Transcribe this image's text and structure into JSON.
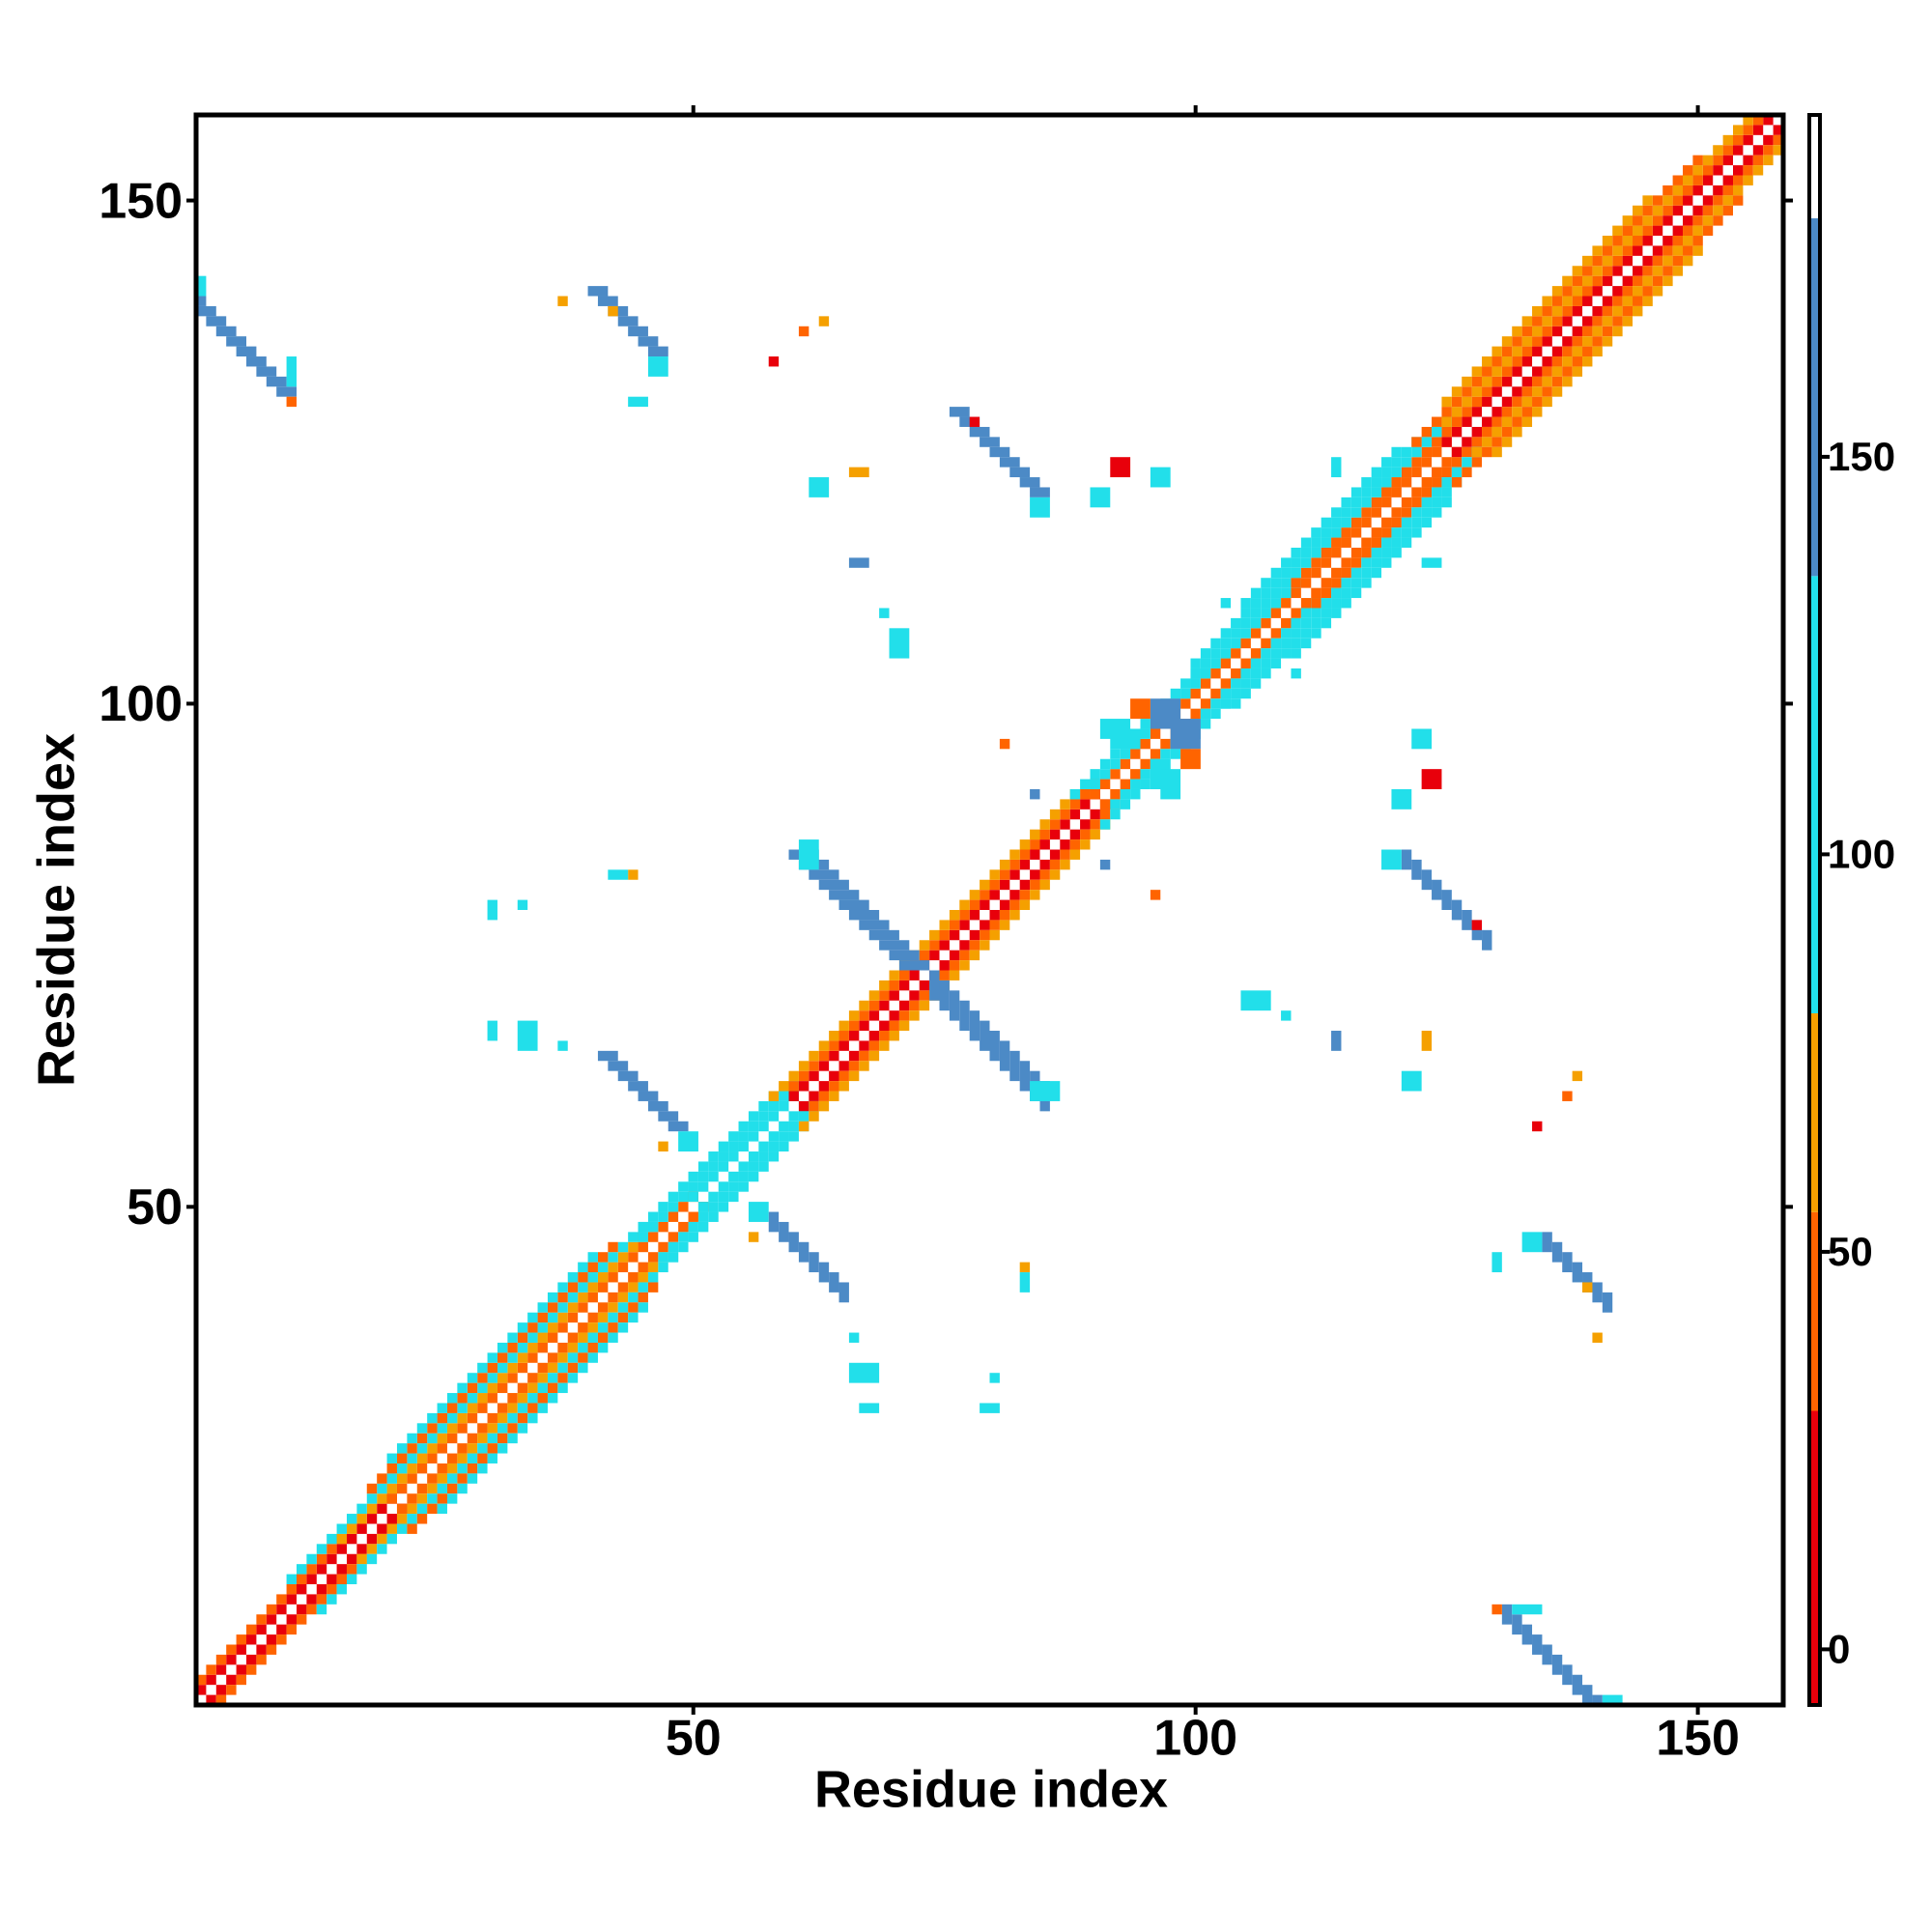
{
  "chart_data": {
    "type": "heatmap",
    "xlabel": "Residue index",
    "ylabel": "Residue index",
    "xlim": [
      0.5,
      158.5
    ],
    "ylim": [
      0.5,
      158.5
    ],
    "xticks": [
      50,
      100,
      150
    ],
    "yticks": [
      50,
      100,
      150
    ],
    "symmetric": true,
    "colorbar": {
      "lim": [
        -7,
        193
      ],
      "ticks": [
        0,
        50,
        100,
        150
      ],
      "bands": [
        [
          -7,
          30,
          "#e8000b"
        ],
        [
          30,
          55,
          "#ff6400"
        ],
        [
          55,
          80,
          "#f5a000"
        ],
        [
          80,
          135,
          "#22dfea"
        ],
        [
          135,
          180,
          "#4c8ac6"
        ],
        [
          180,
          193,
          "#ffffff"
        ]
      ]
    },
    "diagonals": [
      [
        1,
        1,
        20,
        10
      ],
      [
        1,
        20,
        50,
        45
      ],
      [
        1,
        50,
        60,
        110
      ],
      [
        1,
        60,
        90,
        10
      ],
      [
        1,
        90,
        125,
        45
      ],
      [
        1,
        125,
        157,
        10
      ],
      [
        2,
        1,
        15,
        45
      ],
      [
        2,
        15,
        45,
        70
      ],
      [
        2,
        45,
        60,
        110
      ],
      [
        2,
        60,
        90,
        45
      ],
      [
        2,
        90,
        110,
        110
      ],
      [
        2,
        110,
        156,
        45
      ],
      [
        3,
        10,
        45,
        110
      ],
      [
        3,
        45,
        58,
        110
      ],
      [
        3,
        58,
        88,
        70
      ],
      [
        3,
        88,
        100,
        110
      ],
      [
        3,
        100,
        125,
        110
      ],
      [
        3,
        125,
        155,
        70
      ],
      [
        4,
        18,
        42,
        45
      ],
      [
        4,
        100,
        122,
        110
      ],
      [
        4,
        122,
        150,
        45
      ],
      [
        5,
        20,
        40,
        110
      ],
      [
        5,
        105,
        120,
        110
      ],
      [
        5,
        125,
        145,
        70
      ]
    ],
    "strands": [
      [
        131,
        10,
        11,
        2,
        160
      ],
      [
        135,
        47,
        7,
        2,
        160
      ],
      [
        74,
        73,
        12,
        3,
        160
      ],
      [
        121,
        85,
        9,
        2,
        160
      ],
      [
        58,
        49,
        8,
        2,
        160
      ]
    ],
    "blocks": [
      [
        132,
        10,
        3,
        1,
        110
      ],
      [
        141,
        1,
        2,
        1,
        110
      ],
      [
        130,
        10,
        1,
        1,
        45
      ],
      [
        133,
        46,
        2,
        2,
        110
      ],
      [
        139,
        42,
        1,
        1,
        70
      ],
      [
        84,
        61,
        3,
        2,
        110
      ],
      [
        119,
        84,
        2,
        2,
        110
      ],
      [
        128,
        78,
        1,
        1,
        10
      ],
      [
        122,
        96,
        2,
        2,
        110
      ],
      [
        123,
        92,
        2,
        2,
        10
      ],
      [
        120,
        90,
        2,
        2,
        110
      ],
      [
        123,
        66,
        1,
        2,
        70
      ],
      [
        121,
        62,
        2,
        2,
        110
      ],
      [
        105,
        70,
        3,
        2,
        110
      ],
      [
        114,
        66,
        1,
        2,
        160
      ],
      [
        109,
        69,
        1,
        1,
        110
      ],
      [
        134,
        58,
        1,
        1,
        10
      ],
      [
        137,
        61,
        1,
        1,
        45
      ],
      [
        138,
        63,
        1,
        1,
        70
      ],
      [
        130,
        44,
        1,
        2,
        110
      ],
      [
        140,
        37,
        1,
        1,
        70
      ],
      [
        56,
        47,
        1,
        1,
        70
      ],
      [
        56,
        49,
        2,
        2,
        110
      ],
      [
        66,
        37,
        1,
        1,
        110
      ],
      [
        66,
        33,
        3,
        2,
        110
      ],
      [
        67,
        30,
        2,
        1,
        110
      ],
      [
        80,
        33,
        1,
        1,
        110
      ],
      [
        79,
        30,
        2,
        1,
        110
      ],
      [
        83,
        44,
        1,
        1,
        70
      ],
      [
        83,
        42,
        1,
        2,
        110
      ],
      [
        96,
        81,
        1,
        1,
        45
      ],
      [
        91,
        84,
        1,
        1,
        160
      ],
      [
        123,
        114,
        2,
        1,
        110
      ],
      [
        110,
        103,
        1,
        1,
        110
      ],
      [
        92,
        96,
        3,
        2,
        110
      ],
      [
        97,
        91,
        2,
        3,
        110
      ],
      [
        96,
        98,
        3,
        3,
        160
      ],
      [
        99,
        94,
        2,
        2,
        45
      ]
    ]
  }
}
